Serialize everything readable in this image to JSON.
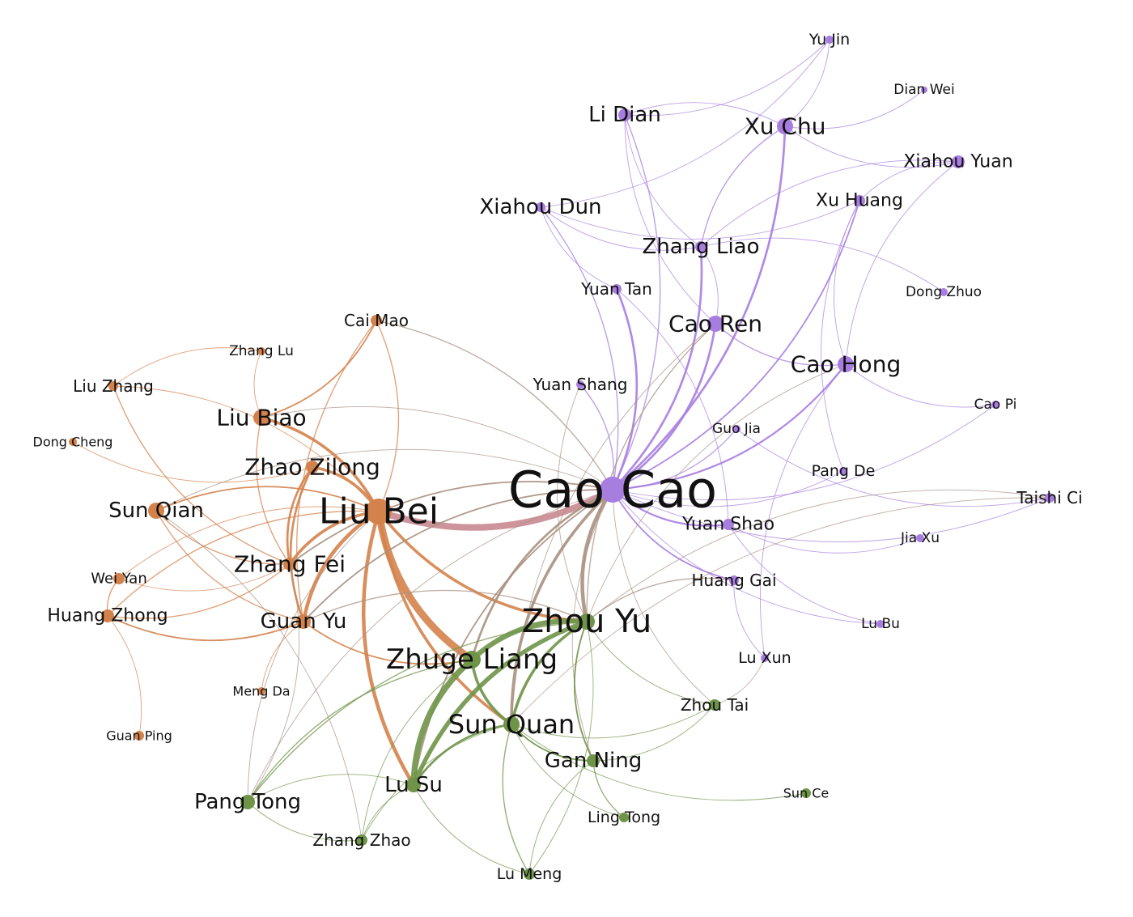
{
  "colors": {
    "wei": "#a77ee0",
    "shu": "#d4824b",
    "wu": "#6f9448",
    "mixed": "#a89080",
    "shu_wei": "#c98890"
  },
  "nodes": [
    {
      "id": "cao-cao",
      "label": "Cao Cao",
      "faction": "wei"
    },
    {
      "id": "liu-bei",
      "label": "Liu Bei",
      "faction": "shu"
    },
    {
      "id": "zhou-yu",
      "label": "Zhou Yu",
      "faction": "wu"
    },
    {
      "id": "zhuge-liang",
      "label": "Zhuge Liang",
      "faction": "wu"
    },
    {
      "id": "sun-quan",
      "label": "Sun Quan",
      "faction": "wu"
    },
    {
      "id": "cao-ren",
      "label": "Cao Ren",
      "faction": "wei"
    },
    {
      "id": "cao-hong",
      "label": "Cao Hong",
      "faction": "wei"
    },
    {
      "id": "xu-chu",
      "label": "Xu Chu",
      "faction": "wei"
    },
    {
      "id": "li-dian",
      "label": "Li Dian",
      "faction": "wei"
    },
    {
      "id": "xiahou-dun",
      "label": "Xiahou Dun",
      "faction": "wei"
    },
    {
      "id": "zhang-liao",
      "label": "Zhang Liao",
      "faction": "wei"
    },
    {
      "id": "xu-huang",
      "label": "Xu Huang",
      "faction": "wei"
    },
    {
      "id": "xiahou-yuan",
      "label": "Xiahou Yuan",
      "faction": "wei"
    },
    {
      "id": "yu-jin",
      "label": "Yu Jin",
      "faction": "wei"
    },
    {
      "id": "dian-wei",
      "label": "Dian Wei",
      "faction": "wei"
    },
    {
      "id": "dong-zhuo",
      "label": "Dong Zhuo",
      "faction": "wei"
    },
    {
      "id": "yuan-tan",
      "label": "Yuan Tan",
      "faction": "wei"
    },
    {
      "id": "yuan-shang",
      "label": "Yuan Shang",
      "faction": "wei"
    },
    {
      "id": "cao-pi",
      "label": "Cao Pi",
      "faction": "wei"
    },
    {
      "id": "guo-jia",
      "label": "Guo Jia",
      "faction": "wei"
    },
    {
      "id": "pang-de",
      "label": "Pang De",
      "faction": "wei"
    },
    {
      "id": "taishi-ci",
      "label": "Taishi Ci",
      "faction": "wei"
    },
    {
      "id": "yuan-shao",
      "label": "Yuan Shao",
      "faction": "wei"
    },
    {
      "id": "jia-xu",
      "label": "Jia Xu",
      "faction": "wei"
    },
    {
      "id": "huang-gai",
      "label": "Huang Gai",
      "faction": "wei"
    },
    {
      "id": "lu-bu",
      "label": "Lu Bu",
      "faction": "wei"
    },
    {
      "id": "lu-xun",
      "label": "Lu Xun",
      "faction": "wei"
    },
    {
      "id": "cai-mao",
      "label": "Cai Mao",
      "faction": "shu"
    },
    {
      "id": "zhang-lu",
      "label": "Zhang Lu",
      "faction": "shu"
    },
    {
      "id": "liu-zhang",
      "label": "Liu Zhang",
      "faction": "shu"
    },
    {
      "id": "liu-biao",
      "label": "Liu Biao",
      "faction": "shu"
    },
    {
      "id": "dong-cheng",
      "label": "Dong Cheng",
      "faction": "shu"
    },
    {
      "id": "zhao-zilong",
      "label": "Zhao Zilong",
      "faction": "shu"
    },
    {
      "id": "sun-qian",
      "label": "Sun Qian",
      "faction": "shu"
    },
    {
      "id": "zhang-fei",
      "label": "Zhang Fei",
      "faction": "shu"
    },
    {
      "id": "wei-yan",
      "label": "Wei Yan",
      "faction": "shu"
    },
    {
      "id": "huang-zhong",
      "label": "Huang Zhong",
      "faction": "shu"
    },
    {
      "id": "guan-yu",
      "label": "Guan Yu",
      "faction": "shu"
    },
    {
      "id": "meng-da",
      "label": "Meng Da",
      "faction": "shu"
    },
    {
      "id": "guan-ping",
      "label": "Guan Ping",
      "faction": "shu"
    },
    {
      "id": "zhou-tai",
      "label": "Zhou Tai",
      "faction": "wu"
    },
    {
      "id": "gan-ning",
      "label": "Gan Ning",
      "faction": "wu"
    },
    {
      "id": "lu-su",
      "label": "Lu Su",
      "faction": "wu"
    },
    {
      "id": "pang-tong",
      "label": "Pang Tong",
      "faction": "wu"
    },
    {
      "id": "sun-ce",
      "label": "Sun Ce",
      "faction": "wu"
    },
    {
      "id": "ling-tong",
      "label": "Ling Tong",
      "faction": "wu"
    },
    {
      "id": "zhang-zhao",
      "label": "Zhang Zhao",
      "faction": "wu"
    },
    {
      "id": "lu-meng",
      "label": "Lu Meng",
      "faction": "wu"
    }
  ],
  "edges": [
    {
      "source": "liu-bei",
      "target": "cao-cao",
      "weight": 9,
      "color": "shu_wei"
    },
    {
      "source": "liu-bei",
      "target": "zhuge-liang",
      "weight": 10,
      "color": "shu"
    },
    {
      "source": "liu-bei",
      "target": "lu-su",
      "weight": 5,
      "color": "shu"
    },
    {
      "source": "liu-bei",
      "target": "zhou-yu",
      "weight": 4,
      "color": "shu"
    },
    {
      "source": "liu-bei",
      "target": "sun-quan",
      "weight": 4,
      "color": "shu"
    },
    {
      "source": "liu-bei",
      "target": "guan-yu",
      "weight": 5,
      "color": "shu"
    },
    {
      "source": "liu-bei",
      "target": "zhang-fei",
      "weight": 4,
      "color": "shu"
    },
    {
      "source": "liu-bei",
      "target": "zhao-zilong",
      "weight": 4,
      "color": "shu"
    },
    {
      "source": "liu-bei",
      "target": "liu-biao",
      "weight": 4,
      "color": "shu"
    },
    {
      "source": "liu-bei",
      "target": "sun-qian",
      "weight": 2,
      "color": "shu"
    },
    {
      "source": "liu-bei",
      "target": "cai-mao",
      "weight": 1.5,
      "color": "shu"
    },
    {
      "source": "liu-bei",
      "target": "huang-zhong",
      "weight": 1.5,
      "color": "shu"
    },
    {
      "source": "liu-bei",
      "target": "wei-yan",
      "weight": 1,
      "color": "shu"
    },
    {
      "source": "liu-bei",
      "target": "liu-zhang",
      "weight": 1,
      "color": "shu"
    },
    {
      "source": "liu-bei",
      "target": "pang-tong",
      "weight": 1,
      "color": "mixed"
    },
    {
      "source": "zhao-zilong",
      "target": "guan-yu",
      "weight": 3,
      "color": "shu"
    },
    {
      "source": "zhao-zilong",
      "target": "zhang-fei",
      "weight": 3,
      "color": "shu"
    },
    {
      "source": "liu-biao",
      "target": "cai-mao",
      "weight": 2,
      "color": "shu"
    },
    {
      "source": "liu-biao",
      "target": "zhang-fei",
      "weight": 1.5,
      "color": "shu"
    },
    {
      "source": "zhang-lu",
      "target": "liu-zhang",
      "weight": 1,
      "color": "shu"
    },
    {
      "source": "zhang-lu",
      "target": "liu-biao",
      "weight": 1,
      "color": "shu"
    },
    {
      "source": "liu-zhang",
      "target": "zhang-fei",
      "weight": 1.5,
      "color": "shu"
    },
    {
      "source": "dong-cheng",
      "target": "zhao-zilong",
      "weight": 1,
      "color": "shu"
    },
    {
      "source": "sun-qian",
      "target": "guan-yu",
      "weight": 1.5,
      "color": "shu"
    },
    {
      "source": "sun-qian",
      "target": "zhang-fei",
      "weight": 1.5,
      "color": "shu"
    },
    {
      "source": "huang-zhong",
      "target": "guan-yu",
      "weight": 2,
      "color": "shu"
    },
    {
      "source": "huang-zhong",
      "target": "zhang-fei",
      "weight": 1.5,
      "color": "shu"
    },
    {
      "source": "wei-yan",
      "target": "zhang-fei",
      "weight": 1,
      "color": "shu"
    },
    {
      "source": "wei-yan",
      "target": "huang-zhong",
      "weight": 1.5,
      "color": "shu"
    },
    {
      "source": "guan-yu",
      "target": "zhuge-liang",
      "weight": 2,
      "color": "shu"
    },
    {
      "source": "guan-yu",
      "target": "meng-da",
      "weight": 1,
      "color": "shu"
    },
    {
      "source": "guan-ping",
      "target": "huang-zhong",
      "weight": 1,
      "color": "shu"
    },
    {
      "source": "cai-mao",
      "target": "guan-yu",
      "weight": 1.5,
      "color": "shu"
    },
    {
      "source": "cao-cao",
      "target": "zhou-yu",
      "weight": 5,
      "color": "mixed"
    },
    {
      "source": "cao-cao",
      "target": "sun-quan",
      "weight": 4,
      "color": "mixed"
    },
    {
      "source": "cao-cao",
      "target": "zhuge-liang",
      "weight": 3,
      "color": "mixed"
    },
    {
      "source": "cao-cao",
      "target": "zhang-fei",
      "weight": 2,
      "color": "mixed"
    },
    {
      "source": "cao-cao",
      "target": "guan-yu",
      "weight": 2,
      "color": "mixed"
    },
    {
      "source": "cao-cao",
      "target": "xu-chu",
      "weight": 3,
      "color": "wei"
    },
    {
      "source": "cao-cao",
      "target": "zhang-liao",
      "weight": 3,
      "color": "wei"
    },
    {
      "source": "cao-cao",
      "target": "cao-ren",
      "weight": 3,
      "color": "wei"
    },
    {
      "source": "cao-cao",
      "target": "yuan-tan",
      "weight": 3,
      "color": "wei"
    },
    {
      "source": "cao-cao",
      "target": "cao-hong",
      "weight": 2.5,
      "color": "wei"
    },
    {
      "source": "cao-cao",
      "target": "xu-huang",
      "weight": 2,
      "color": "wei"
    },
    {
      "source": "cao-cao",
      "target": "xiahou-dun",
      "weight": 1.5,
      "color": "wei"
    },
    {
      "source": "cao-cao",
      "target": "li-dian",
      "weight": 1.5,
      "color": "wei"
    },
    {
      "source": "cao-cao",
      "target": "yuan-shao",
      "weight": 2.5,
      "color": "wei"
    },
    {
      "source": "cao-cao",
      "target": "huang-gai",
      "weight": 2,
      "color": "wei"
    },
    {
      "source": "cao-cao",
      "target": "guo-jia",
      "weight": 1.5,
      "color": "wei"
    },
    {
      "source": "cao-cao",
      "target": "pang-de",
      "weight": 1,
      "color": "wei"
    },
    {
      "source": "cao-cao",
      "target": "yuan-shang",
      "weight": 1.5,
      "color": "wei"
    },
    {
      "source": "cao-cao",
      "target": "lu-bu",
      "weight": 1,
      "color": "wei"
    },
    {
      "source": "cao-cao",
      "target": "taishi-ci",
      "weight": 1,
      "color": "wei"
    },
    {
      "source": "cao-cao",
      "target": "cao-pi",
      "weight": 1,
      "color": "wei"
    },
    {
      "source": "cao-cao",
      "target": "gan-ning",
      "weight": 1,
      "color": "mixed"
    },
    {
      "source": "cao-cao",
      "target": "lu-su",
      "weight": 2,
      "color": "mixed"
    },
    {
      "source": "cao-cao",
      "target": "cai-mao",
      "weight": 1.5,
      "color": "mixed"
    },
    {
      "source": "cao-cao",
      "target": "liu-biao",
      "weight": 1,
      "color": "mixed"
    },
    {
      "source": "cao-cao",
      "target": "sun-qian",
      "weight": 1,
      "color": "mixed"
    },
    {
      "source": "cao-cao",
      "target": "zhou-tai",
      "weight": 1,
      "color": "mixed"
    },
    {
      "source": "cao-cao",
      "target": "pang-tong",
      "weight": 1,
      "color": "mixed"
    },
    {
      "source": "xu-chu",
      "target": "li-dian",
      "weight": 1,
      "color": "wei"
    },
    {
      "source": "xu-chu",
      "target": "xiahou-yuan",
      "weight": 1,
      "color": "wei"
    },
    {
      "source": "xu-chu",
      "target": "yu-jin",
      "weight": 1,
      "color": "wei"
    },
    {
      "source": "xu-chu",
      "target": "zhang-liao",
      "weight": 1.5,
      "color": "wei"
    },
    {
      "source": "xu-chu",
      "target": "dian-wei",
      "weight": 1,
      "color": "wei"
    },
    {
      "source": "li-dian",
      "target": "yu-jin",
      "weight": 1,
      "color": "wei"
    },
    {
      "source": "li-dian",
      "target": "zhang-liao",
      "weight": 1,
      "color": "wei"
    },
    {
      "source": "li-dian",
      "target": "cao-ren",
      "weight": 1,
      "color": "wei"
    },
    {
      "source": "xiahou-dun",
      "target": "yu-jin",
      "weight": 1,
      "color": "wei"
    },
    {
      "source": "xiahou-dun",
      "target": "zhang-liao",
      "weight": 1,
      "color": "wei"
    },
    {
      "source": "xiahou-dun",
      "target": "yuan-tan",
      "weight": 1,
      "color": "wei"
    },
    {
      "source": "xiahou-dun",
      "target": "xu-huang",
      "weight": 1,
      "color": "wei"
    },
    {
      "source": "xiahou-yuan",
      "target": "xu-huang",
      "weight": 1,
      "color": "wei"
    },
    {
      "source": "xiahou-yuan",
      "target": "cao-hong",
      "weight": 1,
      "color": "wei"
    },
    {
      "source": "xiahou-yuan",
      "target": "zhang-liao",
      "weight": 1,
      "color": "wei"
    },
    {
      "source": "xu-huang",
      "target": "cao-hong",
      "weight": 1,
      "color": "wei"
    },
    {
      "source": "xu-huang",
      "target": "pang-de",
      "weight": 1,
      "color": "wei"
    },
    {
      "source": "cao-ren",
      "target": "cao-hong",
      "weight": 1.5,
      "color": "wei"
    },
    {
      "source": "cao-ren",
      "target": "zhou-yu",
      "weight": 1.5,
      "color": "mixed"
    },
    {
      "source": "cao-ren",
      "target": "zhang-liao",
      "weight": 1,
      "color": "wei"
    },
    {
      "source": "cao-ren",
      "target": "sun-quan",
      "weight": 1,
      "color": "mixed"
    },
    {
      "source": "cao-hong",
      "target": "cao-pi",
      "weight": 1,
      "color": "wei"
    },
    {
      "source": "cao-hong",
      "target": "lu-xun",
      "weight": 1,
      "color": "wei"
    },
    {
      "source": "cao-hong",
      "target": "zhou-yu",
      "weight": 1,
      "color": "mixed"
    },
    {
      "source": "dong-zhuo",
      "target": "zhang-liao",
      "weight": 1,
      "color": "wei"
    },
    {
      "source": "yuan-shao",
      "target": "lu-bu",
      "weight": 1,
      "color": "wei"
    },
    {
      "source": "yuan-shao",
      "target": "yuan-tan",
      "weight": 1,
      "color": "wei"
    },
    {
      "source": "yuan-shao",
      "target": "jia-xu",
      "weight": 1,
      "color": "wei"
    },
    {
      "source": "huang-gai",
      "target": "lu-xun",
      "weight": 1,
      "color": "wei"
    },
    {
      "source": "huang-gai",
      "target": "zhou-yu",
      "weight": 1.5,
      "color": "mixed"
    },
    {
      "source": "taishi-ci",
      "target": "zhou-yu",
      "weight": 1,
      "color": "mixed"
    },
    {
      "source": "taishi-ci",
      "target": "sun-quan",
      "weight": 1,
      "color": "mixed"
    },
    {
      "source": "guo-jia",
      "target": "taishi-ci",
      "weight": 1,
      "color": "wei"
    },
    {
      "source": "yuan-shang",
      "target": "zhou-yu",
      "weight": 1,
      "color": "mixed"
    },
    {
      "source": "zhou-yu",
      "target": "zhuge-liang",
      "weight": 7,
      "color": "wu"
    },
    {
      "source": "zhou-yu",
      "target": "lu-su",
      "weight": 6,
      "color": "wu"
    },
    {
      "source": "zhou-yu",
      "target": "sun-quan",
      "weight": 4,
      "color": "wu"
    },
    {
      "source": "zhou-yu",
      "target": "gan-ning",
      "weight": 2,
      "color": "wu"
    },
    {
      "source": "zhou-yu",
      "target": "zhou-tai",
      "weight": 1,
      "color": "wu"
    },
    {
      "source": "zhou-yu",
      "target": "pang-tong",
      "weight": 1.5,
      "color": "wu"
    },
    {
      "source": "zhou-yu",
      "target": "guan-yu",
      "weight": 1.5,
      "color": "mixed"
    },
    {
      "source": "zhuge-liang",
      "target": "lu-su",
      "weight": 8,
      "color": "wu"
    },
    {
      "source": "zhuge-liang",
      "target": "sun-quan",
      "weight": 4,
      "color": "wu"
    },
    {
      "source": "zhuge-liang",
      "target": "pang-tong",
      "weight": 1.5,
      "color": "wu"
    },
    {
      "source": "zhuge-liang",
      "target": "zhang-zhao",
      "weight": 1,
      "color": "wu"
    },
    {
      "source": "sun-quan",
      "target": "lu-su",
      "weight": 3,
      "color": "wu"
    },
    {
      "source": "sun-quan",
      "target": "gan-ning",
      "weight": 2,
      "color": "wu"
    },
    {
      "source": "sun-quan",
      "target": "lu-meng",
      "weight": 1.5,
      "color": "wu"
    },
    {
      "source": "sun-quan",
      "target": "zhang-zhao",
      "weight": 1,
      "color": "wu"
    },
    {
      "source": "sun-quan",
      "target": "ling-tong",
      "weight": 1,
      "color": "wu"
    },
    {
      "source": "sun-quan",
      "target": "sun-ce",
      "weight": 1,
      "color": "wu"
    },
    {
      "source": "sun-quan",
      "target": "zhou-tai",
      "weight": 1,
      "color": "wu"
    },
    {
      "source": "gan-ning",
      "target": "ling-tong",
      "weight": 1.5,
      "color": "wu"
    },
    {
      "source": "gan-ning",
      "target": "lu-meng",
      "weight": 1,
      "color": "wu"
    },
    {
      "source": "gan-ning",
      "target": "zhou-tai",
      "weight": 1,
      "color": "wu"
    },
    {
      "source": "lu-su",
      "target": "zhang-zhao",
      "weight": 1,
      "color": "wu"
    },
    {
      "source": "lu-su",
      "target": "pang-tong",
      "weight": 1,
      "color": "wu"
    },
    {
      "source": "lu-su",
      "target": "lu-meng",
      "weight": 1,
      "color": "wu"
    },
    {
      "source": "pang-tong",
      "target": "zhang-fei",
      "weight": 1,
      "color": "mixed"
    },
    {
      "source": "pang-tong",
      "target": "zhang-zhao",
      "weight": 1,
      "color": "wu"
    },
    {
      "source": "zhang-zhao",
      "target": "sun-qian",
      "weight": 1,
      "color": "mixed"
    },
    {
      "source": "lu-meng",
      "target": "zhou-yu",
      "weight": 1,
      "color": "wu"
    },
    {
      "source": "zhou-tai",
      "target": "lu-xun",
      "weight": 1,
      "color": "mixed"
    }
  ]
}
